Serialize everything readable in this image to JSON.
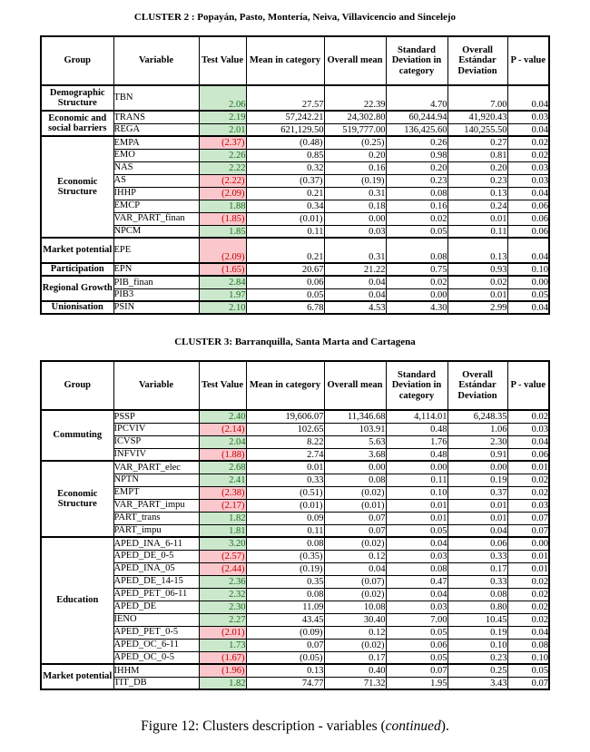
{
  "colors": {
    "positive_bg": "#cbe8cc",
    "positive_text": "#1a6b1a",
    "negative_bg": "#f9c7cc",
    "negative_text": "#c00000",
    "border": "#000000"
  },
  "caption": {
    "prefix": "Figure 12: Clusters description - variables (",
    "italic": "continued",
    "suffix": ")."
  },
  "tables": [
    {
      "title": "CLUSTER 2 : Popayán, Pasto, Montería, Neiva, Villavicencio and Sincelejo",
      "headers": [
        "Group",
        "Variable",
        "Test Value",
        "Mean in category",
        "Overall mean",
        "Standard Deviation in category",
        "Overall Estándar Deviation",
        "P - value"
      ],
      "groups": [
        {
          "group": "Demographic Structure",
          "tall": true,
          "rows": [
            {
              "variable": "TBN",
              "test": "2.06",
              "state": "positive",
              "values": [
                "27.57",
                "22.39",
                "4.70",
                "7.00",
                "0.04"
              ]
            }
          ]
        },
        {
          "group": "Economic and social barriers",
          "rows": [
            {
              "variable": "TRANS",
              "test": "2.19",
              "state": "positive",
              "values": [
                "57,242.21",
                "24,302.80",
                "60,244.94",
                "41,920.43",
                "0.03"
              ]
            },
            {
              "variable": "REGA",
              "test": "2.01",
              "state": "positive",
              "values": [
                "621,129.50",
                "519,777.00",
                "136,425.60",
                "140,255.50",
                "0.04"
              ]
            }
          ]
        },
        {
          "group": "Economic Structure",
          "rows": [
            {
              "variable": "EMPA",
              "test": "(2.37)",
              "state": "negative",
              "values": [
                "(0.48)",
                "(0.25)",
                "0.26",
                "0.27",
                "0.02"
              ]
            },
            {
              "variable": "EMO",
              "test": "2.26",
              "state": "positive",
              "values": [
                "0.85",
                "0.20",
                "0.98",
                "0.81",
                "0.02"
              ]
            },
            {
              "variable": "NAS",
              "test": "2.22",
              "state": "positive",
              "values": [
                "0.32",
                "0.16",
                "0.20",
                "0.20",
                "0.03"
              ]
            },
            {
              "variable": "AS",
              "test": "(2.22)",
              "state": "negative",
              "values": [
                "(0.37)",
                "(0.19)",
                "0.23",
                "0.23",
                "0.03"
              ]
            },
            {
              "variable": "IHHP",
              "test": "(2.09)",
              "state": "negative",
              "values": [
                "0.21",
                "0.31",
                "0.08",
                "0.13",
                "0.04"
              ]
            },
            {
              "variable": "EMCP",
              "test": "1.88",
              "state": "positive",
              "values": [
                "0.34",
                "0.18",
                "0.16",
                "0.24",
                "0.06"
              ]
            },
            {
              "variable": "VAR_PART_finan",
              "test": "(1.85)",
              "state": "negative",
              "values": [
                "(0.01)",
                "0.00",
                "0.02",
                "0.01",
                "0.06"
              ]
            },
            {
              "variable": "NPCM",
              "test": "1.85",
              "state": "positive",
              "values": [
                "0.11",
                "0.03",
                "0.05",
                "0.11",
                "0.06"
              ]
            }
          ]
        },
        {
          "group": "Market potential",
          "tall": true,
          "rows": [
            {
              "variable": "EPE",
              "test": "(2.09)",
              "state": "negative",
              "values": [
                "0.21",
                "0.31",
                "0.08",
                "0.13",
                "0.04"
              ]
            }
          ]
        },
        {
          "group": "Participation",
          "rows": [
            {
              "variable": "EPN",
              "test": "(1.65)",
              "state": "negative",
              "values": [
                "20.67",
                "21.22",
                "0.75",
                "0.93",
                "0.10"
              ]
            }
          ]
        },
        {
          "group": "Regional Growth",
          "rows": [
            {
              "variable": "PIB_finan",
              "test": "2.84",
              "state": "positive",
              "values": [
                "0.06",
                "0.04",
                "0.02",
                "0.02",
                "0.00"
              ]
            },
            {
              "variable": "PIB3",
              "test": "1.97",
              "state": "positive",
              "values": [
                "0.05",
                "0.04",
                "0.00",
                "0.01",
                "0.05"
              ]
            }
          ]
        },
        {
          "group": "Unionisation",
          "rows": [
            {
              "variable": "PSIN",
              "test": "2.10",
              "state": "positive",
              "values": [
                "6.78",
                "4.53",
                "4.30",
                "2.99",
                "0.04"
              ]
            }
          ]
        }
      ]
    },
    {
      "title": "CLUSTER 3: Barranquilla, Santa Marta and Cartagena",
      "headers": [
        "Group",
        "Variable",
        "Test Value",
        "Mean in category",
        "Overall mean",
        "Standard Deviation in category",
        "Overall Estándar Deviation",
        "P - value"
      ],
      "groups": [
        {
          "group": "Commuting",
          "rows": [
            {
              "variable": "PSSP",
              "test": "2.40",
              "state": "positive",
              "values": [
                "19,606.07",
                "11,346.68",
                "4,114.01",
                "6,248.35",
                "0.02"
              ]
            },
            {
              "variable": "IPCVIV",
              "test": "(2.14)",
              "state": "negative",
              "values": [
                "102.65",
                "103.91",
                "0.48",
                "1.06",
                "0.03"
              ]
            },
            {
              "variable": "ICVSP",
              "test": "2.04",
              "state": "positive",
              "values": [
                "8.22",
                "5.63",
                "1.76",
                "2.30",
                "0.04"
              ]
            },
            {
              "variable": "INFVIV",
              "test": "(1.88)",
              "state": "negative",
              "values": [
                "2.74",
                "3.68",
                "0.48",
                "0.91",
                "0.06"
              ]
            }
          ]
        },
        {
          "group": "Economic Structure",
          "rows": [
            {
              "variable": "VAR_PART_elec",
              "test": "2.68",
              "state": "positive",
              "values": [
                "0.01",
                "0.00",
                "0.00",
                "0.00",
                "0.01"
              ]
            },
            {
              "variable": "NPTN",
              "test": "2.41",
              "state": "positive",
              "values": [
                "0.33",
                "0.08",
                "0.11",
                "0.19",
                "0.02"
              ]
            },
            {
              "variable": "EMPT",
              "test": "(2.38)",
              "state": "negative",
              "values": [
                "(0.51)",
                "(0.02)",
                "0.10",
                "0.37",
                "0.02"
              ]
            },
            {
              "variable": "VAR_PART_impu",
              "test": "(2.17)",
              "state": "negative",
              "values": [
                "(0.01)",
                "(0.01)",
                "0.01",
                "0.01",
                "0.03"
              ]
            },
            {
              "variable": "PART_trans",
              "test": "1.82",
              "state": "positive",
              "values": [
                "0.09",
                "0.07",
                "0.01",
                "0.01",
                "0.07"
              ]
            },
            {
              "variable": "PART_impu",
              "test": "1.81",
              "state": "positive",
              "values": [
                "0.11",
                "0.07",
                "0.05",
                "0.04",
                "0.07"
              ]
            }
          ]
        },
        {
          "group": "Education",
          "rows": [
            {
              "variable": "APED_INA_6-11",
              "test": "3.20",
              "state": "positive",
              "values": [
                "0.08",
                "(0.02)",
                "0.04",
                "0.06",
                "0.00"
              ]
            },
            {
              "variable": "APED_DE_0-5",
              "test": "(2.57)",
              "state": "negative",
              "values": [
                "(0.35)",
                "0.12",
                "0.03",
                "0.33",
                "0.01"
              ]
            },
            {
              "variable": "APED_INA_05",
              "test": "(2.44)",
              "state": "negative",
              "values": [
                "(0.19)",
                "0.04",
                "0.08",
                "0.17",
                "0.01"
              ]
            },
            {
              "variable": "APED_DE_14-15",
              "test": "2.36",
              "state": "positive",
              "values": [
                "0.35",
                "(0.07)",
                "0.47",
                "0.33",
                "0.02"
              ]
            },
            {
              "variable": "APED_PET_06-11",
              "test": "2.32",
              "state": "positive",
              "values": [
                "0.08",
                "(0.02)",
                "0.04",
                "0.08",
                "0.02"
              ]
            },
            {
              "variable": "APED_DE",
              "test": "2.30",
              "state": "positive",
              "values": [
                "11.09",
                "10.08",
                "0.03",
                "0.80",
                "0.02"
              ]
            },
            {
              "variable": "IENO",
              "test": "2.27",
              "state": "positive",
              "values": [
                "43.45",
                "30.40",
                "7.00",
                "10.45",
                "0.02"
              ]
            },
            {
              "variable": "APED_PET_0-5",
              "test": "(2.01)",
              "state": "negative",
              "values": [
                "(0.09)",
                "0.12",
                "0.05",
                "0.19",
                "0.04"
              ]
            },
            {
              "variable": "APED_OC_6-11",
              "test": "1.73",
              "state": "positive",
              "values": [
                "0.07",
                "(0.02)",
                "0.06",
                "0.10",
                "0.08"
              ]
            },
            {
              "variable": "APED_OC_0-5",
              "test": "(1.67)",
              "state": "negative",
              "values": [
                "(0.05)",
                "0.17",
                "0.05",
                "0.23",
                "0.10"
              ]
            }
          ]
        },
        {
          "group": "Market potential",
          "rows": [
            {
              "variable": "IHHM",
              "test": "(1.96)",
              "state": "negative",
              "values": [
                "0.13",
                "0.40",
                "0.07",
                "0.25",
                "0.05"
              ]
            },
            {
              "variable": "TIT_DB",
              "test": "1.82",
              "state": "positive",
              "values": [
                "74.77",
                "71.32",
                "1.95",
                "3.43",
                "0.07"
              ]
            }
          ]
        }
      ]
    }
  ]
}
